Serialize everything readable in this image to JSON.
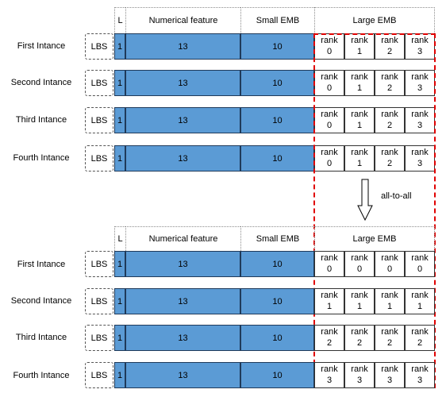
{
  "top": {
    "headers": {
      "l": "L",
      "numerical": "Numerical  feature",
      "small": "Small EMB",
      "large": "Large EMB"
    },
    "rows": [
      {
        "label": "First Intance",
        "lbs": "LBS",
        "l": "1",
        "numerical": "13",
        "small": "10",
        "ranks": [
          [
            "rank",
            "0"
          ],
          [
            "rank",
            "1"
          ],
          [
            "rank",
            "2"
          ],
          [
            "rank",
            "3"
          ]
        ]
      },
      {
        "label": "Second Intance",
        "lbs": "LBS",
        "l": "1",
        "numerical": "13",
        "small": "10",
        "ranks": [
          [
            "rank",
            "0"
          ],
          [
            "rank",
            "1"
          ],
          [
            "rank",
            "2"
          ],
          [
            "rank",
            "3"
          ]
        ]
      },
      {
        "label": "Third Intance",
        "lbs": "LBS",
        "l": "1",
        "numerical": "13",
        "small": "10",
        "ranks": [
          [
            "rank",
            "0"
          ],
          [
            "rank",
            "1"
          ],
          [
            "rank",
            "2"
          ],
          [
            "rank",
            "3"
          ]
        ]
      },
      {
        "label": "Fourth Intance",
        "lbs": "LBS",
        "l": "1",
        "numerical": "13",
        "small": "10",
        "ranks": [
          [
            "rank",
            "0"
          ],
          [
            "rank",
            "1"
          ],
          [
            "rank",
            "2"
          ],
          [
            "rank",
            "3"
          ]
        ]
      }
    ]
  },
  "arrow_label": "all-to-all",
  "bottom": {
    "headers": {
      "l": "L",
      "numerical": "Numerical  feature",
      "small": "Small EMB",
      "large": "Large EMB"
    },
    "rows": [
      {
        "label": "First Intance",
        "lbs": "LBS",
        "l": "1",
        "numerical": "13",
        "small": "10",
        "ranks": [
          [
            "rank",
            "0"
          ],
          [
            "rank",
            "0"
          ],
          [
            "rank",
            "0"
          ],
          [
            "rank",
            "0"
          ]
        ]
      },
      {
        "label": "Second Intance",
        "lbs": "LBS",
        "l": "1",
        "numerical": "13",
        "small": "10",
        "ranks": [
          [
            "rank",
            "1"
          ],
          [
            "rank",
            "1"
          ],
          [
            "rank",
            "1"
          ],
          [
            "rank",
            "1"
          ]
        ]
      },
      {
        "label": "Third Intance",
        "lbs": "LBS",
        "l": "1",
        "numerical": "13",
        "small": "10",
        "ranks": [
          [
            "rank",
            "2"
          ],
          [
            "rank",
            "2"
          ],
          [
            "rank",
            "2"
          ],
          [
            "rank",
            "2"
          ]
        ]
      },
      {
        "label": "Fourth Intance",
        "lbs": "LBS",
        "l": "1",
        "numerical": "13",
        "small": "10",
        "ranks": [
          [
            "rank",
            "3"
          ],
          [
            "rank",
            "3"
          ],
          [
            "rank",
            "3"
          ],
          [
            "rank",
            "3"
          ]
        ]
      }
    ]
  }
}
